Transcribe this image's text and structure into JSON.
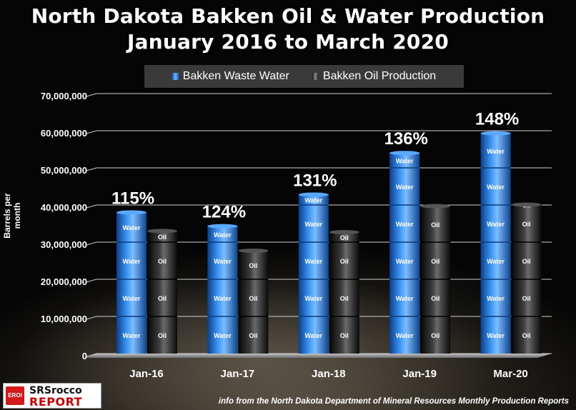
{
  "header": {
    "title_line1": "North Dakota Bakken Oil & Water Production",
    "title_line2": "January 2016 to March 2020"
  },
  "legend": {
    "water": "Bakken Waste Water",
    "oil": "Bakken Oil Production"
  },
  "footer": {
    "source": "info from the North Dakota Department of Mineral Resources Monthly Production Reports",
    "logo_badge": "EROI",
    "logo_top": "SRSrocco",
    "logo_bottom": "REPORT"
  },
  "barrel_labels": {
    "water": "Water",
    "oil": "Oil"
  },
  "colors": {
    "water": "#2a7de0",
    "oil": "#1c1c1c",
    "gridline": "#cfcfcf",
    "text": "#ffffff"
  },
  "chart_data": {
    "type": "bar",
    "title": "North Dakota Bakken Oil & Water Production January 2016 to March 2020",
    "ylabel": "Barrels per month",
    "xlabel": "",
    "ylim": [
      0,
      70000000
    ],
    "yticks": [
      "0",
      "10,000,000",
      "20,000,000",
      "30,000,000",
      "40,000,000",
      "50,000,000",
      "60,000,000",
      "70,000,000"
    ],
    "grid": true,
    "legend_position": "top",
    "categories": [
      "Jan-16",
      "Jan-17",
      "Jan-18",
      "Jan-19",
      "Mar-20"
    ],
    "series": [
      {
        "name": "Bakken Waste Water",
        "values": [
          38000000,
          34300000,
          42800000,
          54000000,
          59300000
        ]
      },
      {
        "name": "Bakken Oil Production",
        "values": [
          33000000,
          27700000,
          32700000,
          39700000,
          40100000
        ]
      }
    ],
    "annotations": [
      "115%",
      "124%",
      "131%",
      "136%",
      "148%"
    ]
  }
}
